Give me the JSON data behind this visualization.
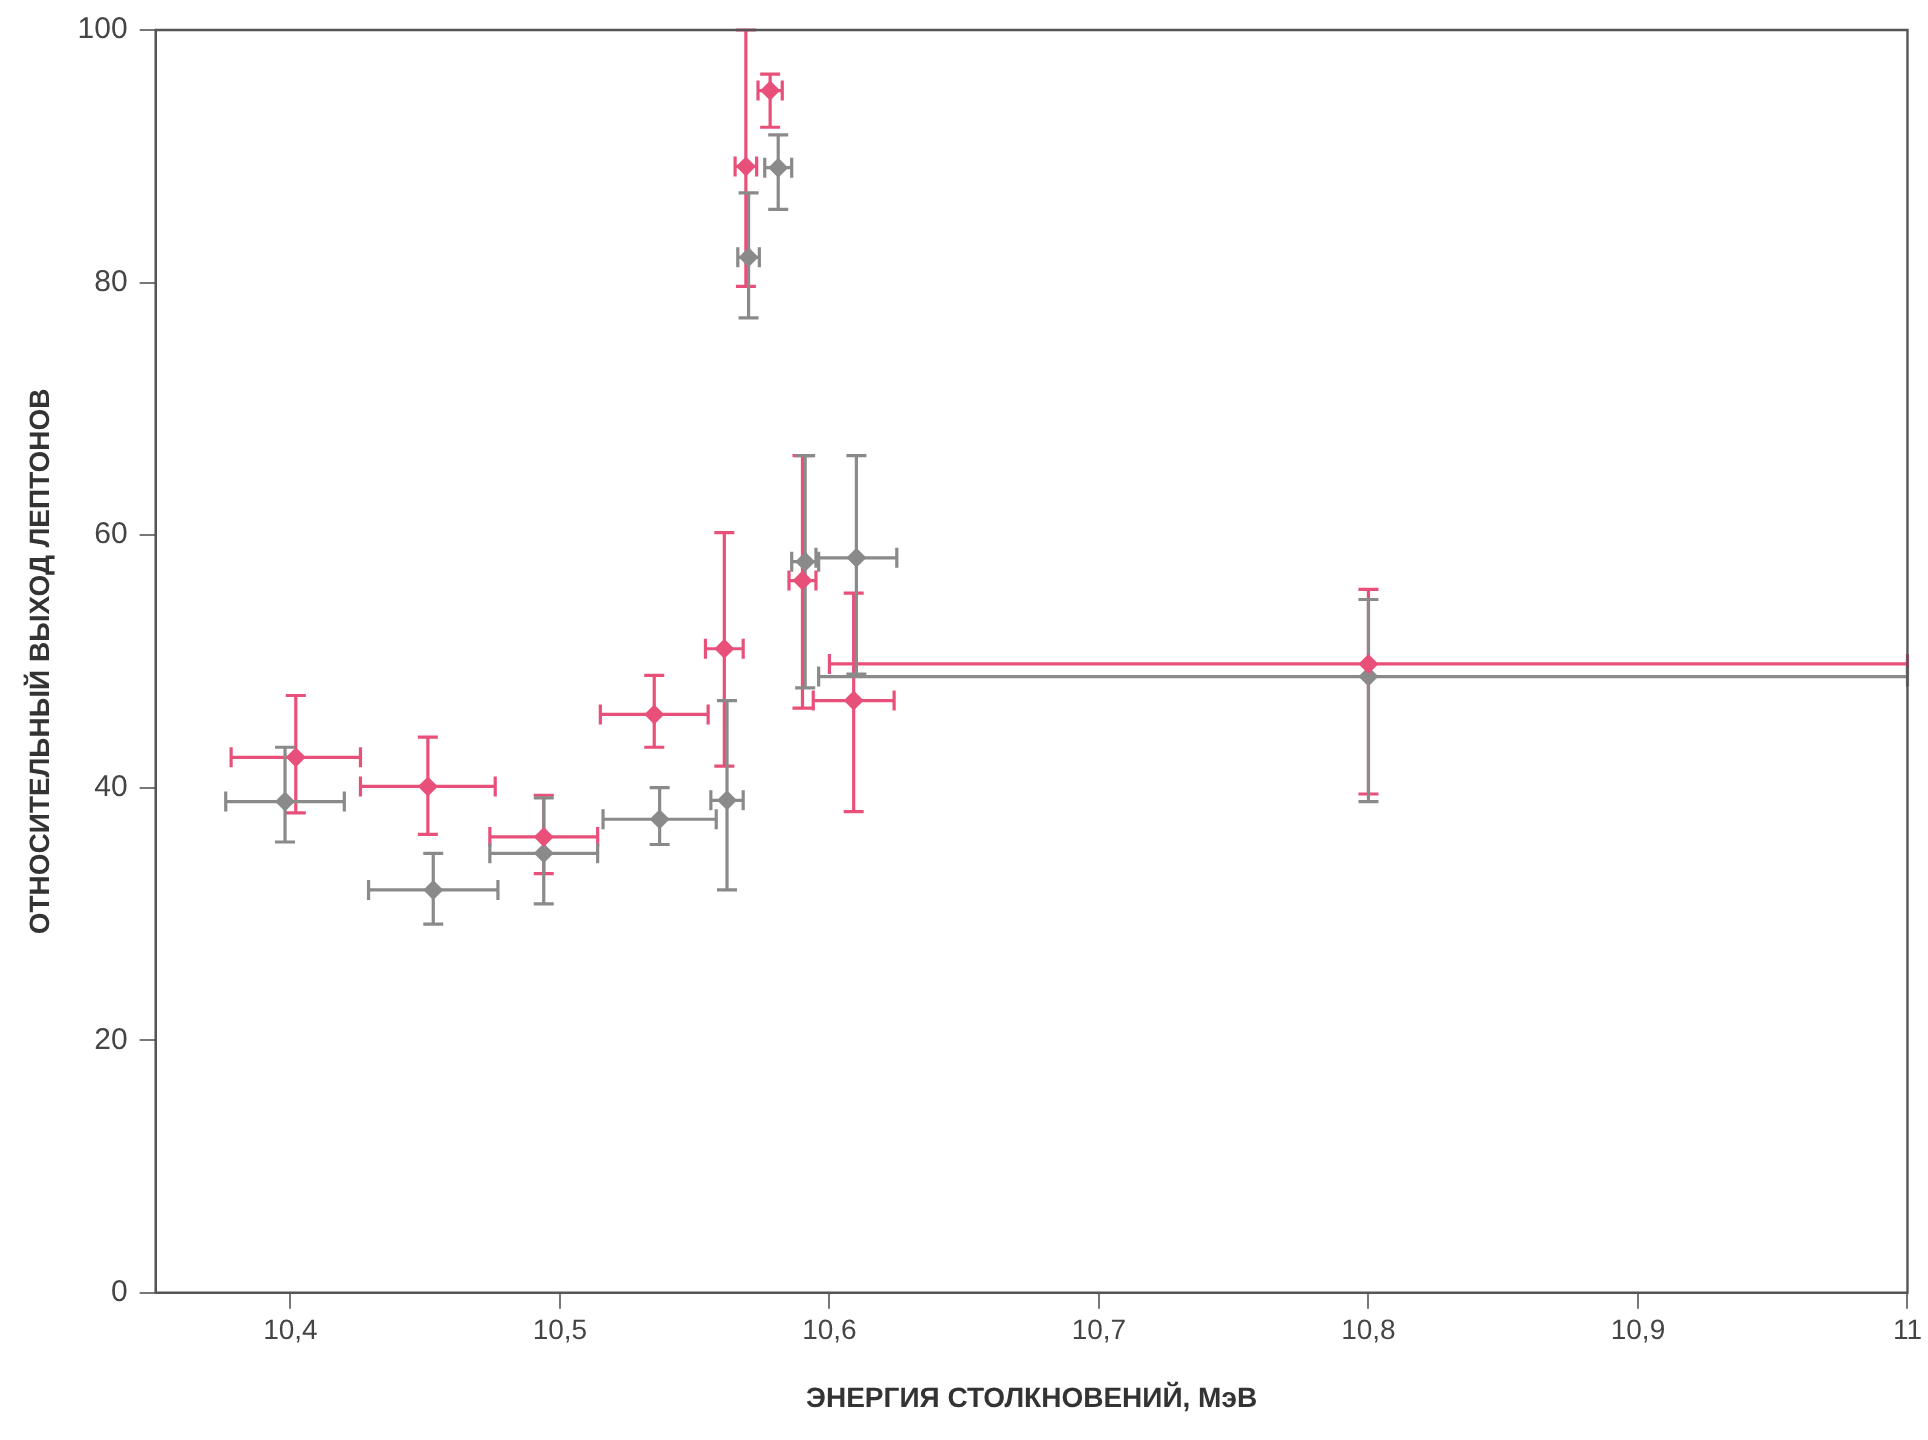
{
  "chart_data": {
    "type": "scatter",
    "xlabel": "ЭНЕРГИЯ СТОЛКНОВЕНИЙ, МэВ",
    "ylabel": "ОТНОСИТЕЛЬНЫЙ ВЫХОД ЛЕПТОНОВ",
    "xlim": [
      10.35,
      11
    ],
    "xticks": [
      {
        "value": 10.4,
        "label": "10,4"
      },
      {
        "value": 10.5,
        "label": "10,5"
      },
      {
        "value": 10.6,
        "label": "10,6"
      },
      {
        "value": 10.7,
        "label": "10,7"
      },
      {
        "value": 10.8,
        "label": "10,8"
      },
      {
        "value": 10.9,
        "label": "10,9"
      },
      11
    ],
    "ylim": [
      0,
      100
    ],
    "yticks": [
      0,
      20,
      40,
      60,
      80,
      100
    ],
    "grid": false,
    "legend": false,
    "marker": "diamond",
    "series": [
      {
        "color": "#e8507a",
        "x": [
          10.402,
          10.451,
          10.494,
          10.535,
          10.561,
          10.59,
          10.609,
          10.8,
          10.578,
          10.569
        ],
        "values": [
          42.4,
          40.1,
          36.1,
          45.8,
          51,
          56.4,
          46.9,
          49.8,
          95.2,
          89.2
        ],
        "errors": [
          [
            38,
            47.3
          ],
          [
            36.3,
            44
          ],
          [
            33.2,
            39.4
          ],
          [
            43.2,
            48.9
          ],
          [
            41.7,
            60.2
          ],
          [
            46.3,
            66.3
          ],
          [
            38.1,
            55.4
          ],
          [
            39.5,
            55.7
          ],
          [
            92.3,
            96.5
          ],
          [
            79.7,
            100
          ]
        ],
        "xerrors": [
          0.024,
          0.025,
          0.02,
          0.02,
          0.007,
          0.005,
          0.015,
          0.2,
          0.0045,
          0.004
        ]
      },
      {
        "color": "#8a8a8a",
        "x": [
          10.398,
          10.453,
          10.494,
          10.537,
          10.562,
          10.591,
          10.61,
          10.8,
          10.581,
          10.57
        ],
        "values": [
          38.9,
          31.9,
          34.8,
          37.5,
          39,
          57.9,
          58.2,
          48.8,
          89.1,
          82
        ],
        "errors": [
          [
            35.7,
            43.2
          ],
          [
            29.2,
            34.8
          ],
          [
            30.8,
            39.2
          ],
          [
            35.5,
            40
          ],
          [
            31.9,
            46.9
          ],
          [
            47.9,
            66.3
          ],
          [
            49,
            66.3
          ],
          [
            38.9,
            54.9
          ],
          [
            85.8,
            91.7
          ],
          [
            77.2,
            87.1
          ]
        ],
        "xerrors": [
          0.022,
          0.024,
          0.02,
          0.021,
          0.006,
          0.005,
          0.015,
          [
            10.596,
            11
          ],
          0.005,
          0.004
        ]
      }
    ]
  }
}
